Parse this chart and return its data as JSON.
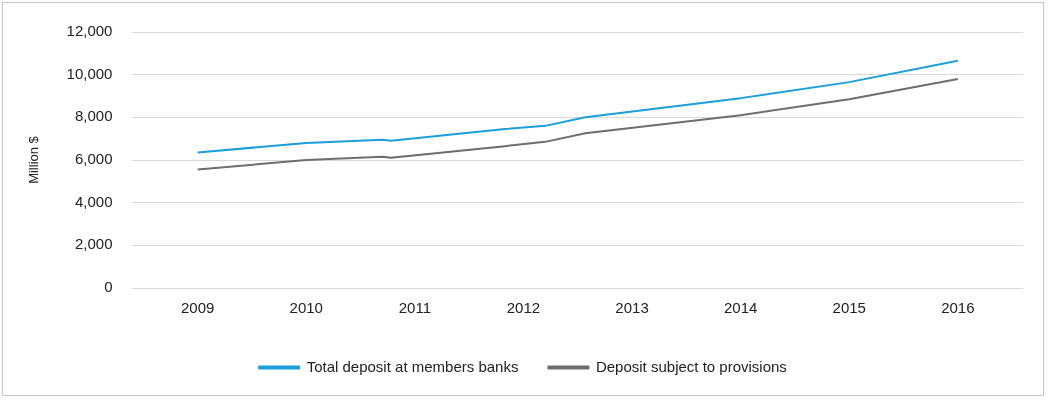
{
  "chart_data": {
    "type": "line",
    "ylabel": "Million $",
    "xlim": [
      2008.4,
      2016.6
    ],
    "xticks": [
      2009,
      2010,
      2011,
      2012,
      2013,
      2014,
      2015,
      2016
    ],
    "ylim": [
      0,
      12000
    ],
    "yticks": [
      0,
      {
        "value": 2000,
        "label": "2,000"
      },
      {
        "value": 4000,
        "label": "4,000"
      },
      {
        "value": 6000,
        "label": "6,000"
      },
      {
        "value": 8000,
        "label": "8,000"
      },
      {
        "value": 10000,
        "label": "10,000"
      },
      {
        "value": 12000,
        "label": "12,000"
      }
    ],
    "grid": "y",
    "legend": "bottom",
    "marker": "none",
    "line_style": "solid",
    "series": [
      {
        "name": "Total deposit at members banks",
        "color": "#1a9fdb",
        "x": [
          2009,
          2010,
          2010.7,
          2010.78,
          2011.83,
          2012.2,
          2012.57,
          2014,
          2015,
          2016
        ],
        "values": [
          6350,
          6800,
          6950,
          6900,
          7450,
          7600,
          8000,
          8900,
          9650,
          10650
        ]
      },
      {
        "name": "Deposit subject to provisions",
        "color": "#6d6e71",
        "x": [
          2009,
          2010,
          2010.7,
          2010.78,
          2011.83,
          2012.2,
          2012.57,
          2014,
          2015,
          2016
        ],
        "values": [
          5550,
          6000,
          6150,
          6100,
          6650,
          6850,
          7250,
          8100,
          8850,
          9800
        ]
      }
    ]
  }
}
